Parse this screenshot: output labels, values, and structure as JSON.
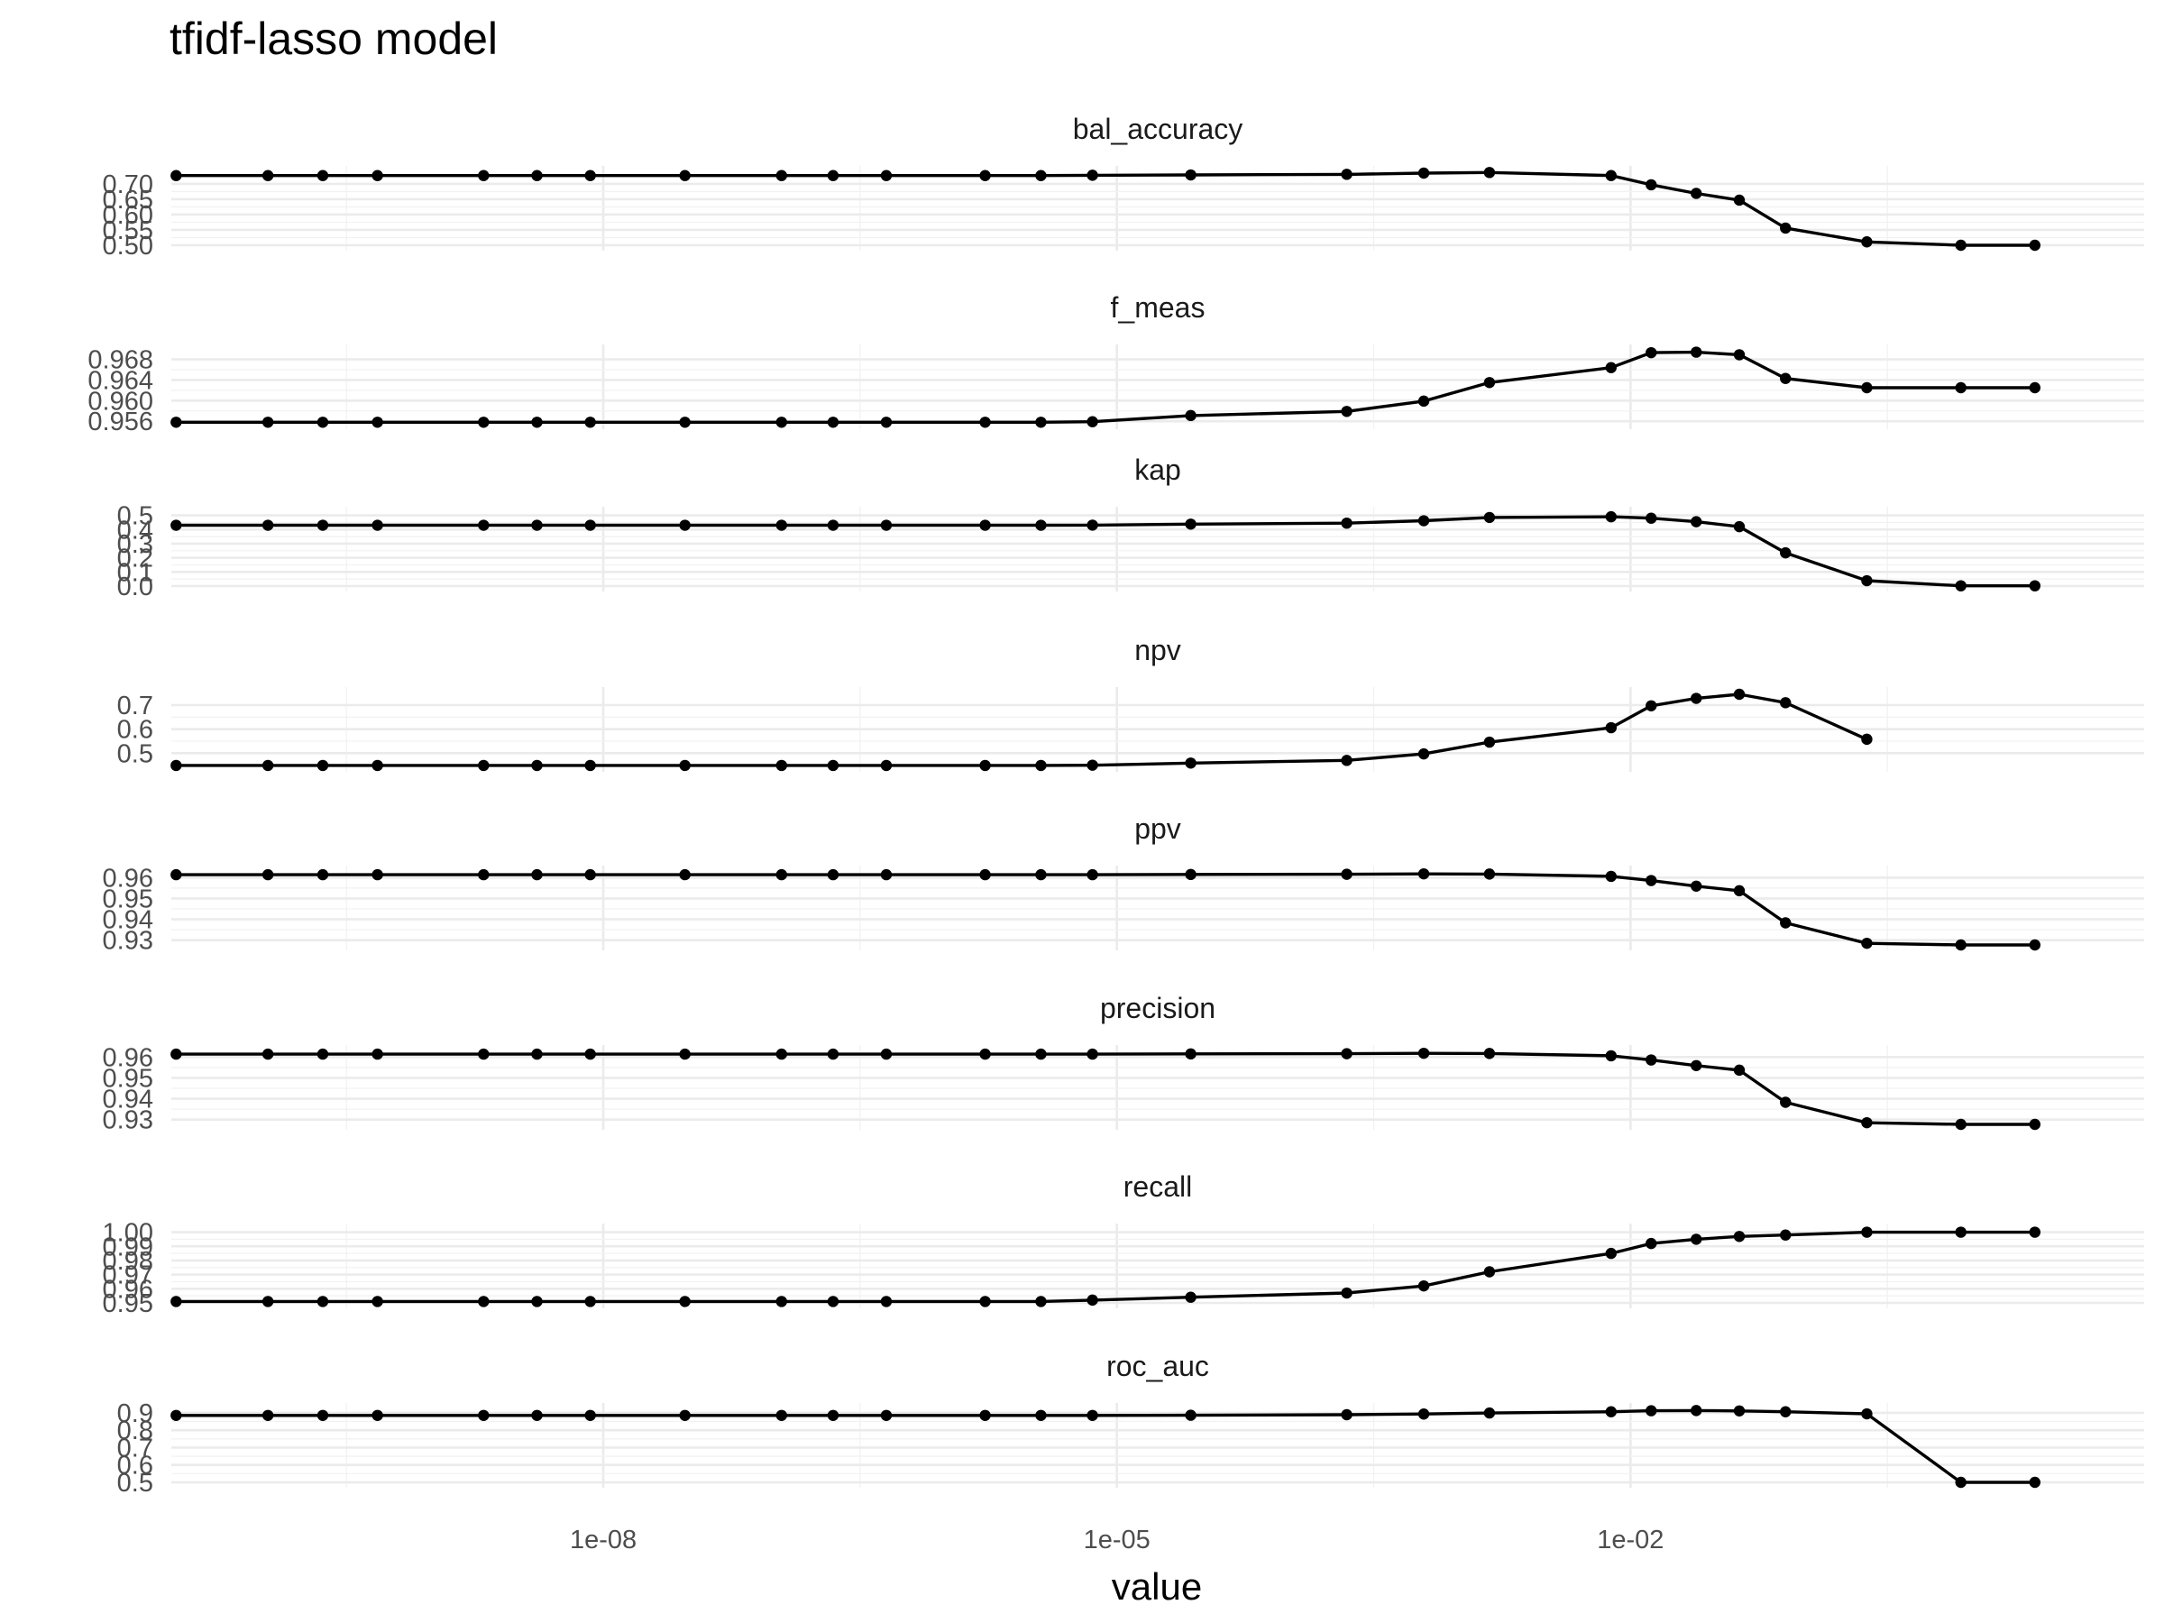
{
  "chart_data": {
    "type": "line",
    "title": "tfidf-lasso model",
    "xlabel": "value",
    "ylabel": "",
    "x_scale": "log10",
    "x_ticks": [
      1e-08,
      1e-05,
      0.01
    ],
    "x_tick_labels": [
      "1e-08",
      "1e-05",
      "1e-02"
    ],
    "xlim": [
      3e-11,
      10
    ],
    "grid": true,
    "x": [
      3.2e-11,
      1.1e-10,
      2.3e-10,
      4.8e-10,
      2e-09,
      4.1e-09,
      8.4e-09,
      3e-08,
      1.1e-07,
      2.2e-07,
      4.5e-07,
      1.7e-06,
      3.6e-06,
      7.2e-06,
      2.7e-05,
      0.00022,
      0.00062,
      0.0015,
      0.0077,
      0.0132,
      0.0242,
      0.0432,
      0.0804,
      0.24,
      0.85,
      2.3
    ],
    "panels": [
      {
        "name": "bal_accuracy",
        "y_ticks": [
          0.5,
          0.55,
          0.6,
          0.65,
          0.7
        ],
        "y_tick_labels": [
          "0.50",
          "0.55",
          "0.60",
          "0.65",
          "0.70"
        ],
        "ylim": [
          0.5,
          0.735
        ],
        "values": [
          0.727,
          0.727,
          0.727,
          0.727,
          0.727,
          0.727,
          0.727,
          0.727,
          0.727,
          0.727,
          0.727,
          0.727,
          0.727,
          0.728,
          0.729,
          0.731,
          0.735,
          0.737,
          0.727,
          0.697,
          0.669,
          0.647,
          0.556,
          0.511,
          0.5,
          0.5
        ]
      },
      {
        "name": "f_meas",
        "y_ticks": [
          0.956,
          0.96,
          0.964,
          0.968
        ],
        "y_tick_labels": [
          "0.956",
          "0.960",
          "0.964",
          "0.968"
        ],
        "ylim": [
          0.9555,
          0.9695
        ],
        "values": [
          0.9558,
          0.9558,
          0.9558,
          0.9558,
          0.9558,
          0.9558,
          0.9558,
          0.9558,
          0.9558,
          0.9558,
          0.9558,
          0.9558,
          0.9558,
          0.9559,
          0.9571,
          0.9579,
          0.9599,
          0.9635,
          0.9664,
          0.9693,
          0.9694,
          0.9689,
          0.9643,
          0.9625,
          0.9625,
          0.9625
        ]
      },
      {
        "name": "kap",
        "y_ticks": [
          0.0,
          0.1,
          0.2,
          0.3,
          0.4,
          0.5
        ],
        "y_tick_labels": [
          "0.0",
          "0.1",
          "0.2",
          "0.3",
          "0.4",
          "0.5"
        ],
        "ylim": [
          0.0,
          0.51
        ],
        "values": [
          0.43,
          0.43,
          0.43,
          0.43,
          0.43,
          0.43,
          0.43,
          0.43,
          0.43,
          0.43,
          0.43,
          0.43,
          0.43,
          0.431,
          0.438,
          0.445,
          0.462,
          0.485,
          0.49,
          0.48,
          0.455,
          0.42,
          0.235,
          0.038,
          0.002,
          0.002
        ]
      },
      {
        "name": "npv",
        "y_ticks": [
          0.5,
          0.6,
          0.7
        ],
        "y_tick_labels": [
          "0.5",
          "0.6",
          "0.7"
        ],
        "ylim": [
          0.445,
          0.745
        ],
        "values": [
          0.449,
          0.449,
          0.449,
          0.449,
          0.449,
          0.449,
          0.449,
          0.449,
          0.449,
          0.449,
          0.449,
          0.449,
          0.449,
          0.45,
          0.459,
          0.47,
          0.497,
          0.546,
          0.606,
          0.697,
          0.728,
          0.745,
          0.71,
          0.558,
          null,
          null
        ]
      },
      {
        "name": "ppv",
        "y_ticks": [
          0.93,
          0.94,
          0.95,
          0.96
        ],
        "y_tick_labels": [
          "0.93",
          "0.94",
          "0.95",
          "0.96"
        ],
        "ylim": [
          0.9277,
          0.9623
        ],
        "values": [
          0.9614,
          0.9614,
          0.9614,
          0.9614,
          0.9614,
          0.9614,
          0.9614,
          0.9614,
          0.9614,
          0.9614,
          0.9614,
          0.9614,
          0.9614,
          0.9614,
          0.9615,
          0.9616,
          0.9618,
          0.9617,
          0.9606,
          0.9586,
          0.9559,
          0.9537,
          0.9383,
          0.9285,
          0.9277,
          0.9277
        ]
      },
      {
        "name": "precision",
        "y_ticks": [
          0.93,
          0.94,
          0.95,
          0.96
        ],
        "y_tick_labels": [
          "0.93",
          "0.94",
          "0.95",
          "0.96"
        ],
        "ylim": [
          0.9277,
          0.9623
        ],
        "values": [
          0.9614,
          0.9614,
          0.9614,
          0.9614,
          0.9614,
          0.9614,
          0.9614,
          0.9614,
          0.9614,
          0.9614,
          0.9614,
          0.9614,
          0.9614,
          0.9614,
          0.9615,
          0.9616,
          0.9618,
          0.9617,
          0.9606,
          0.9586,
          0.9559,
          0.9537,
          0.9383,
          0.9285,
          0.9277,
          0.9277
        ]
      },
      {
        "name": "recall",
        "y_ticks": [
          0.95,
          0.96,
          0.97,
          0.98,
          0.99,
          1.0
        ],
        "y_tick_labels": [
          "0.95",
          "0.96",
          "0.97",
          "0.98",
          "0.99",
          "1.00"
        ],
        "ylim": [
          0.95,
          1.001
        ],
        "values": [
          0.951,
          0.951,
          0.951,
          0.951,
          0.951,
          0.951,
          0.951,
          0.951,
          0.951,
          0.951,
          0.951,
          0.951,
          0.951,
          0.952,
          0.954,
          0.957,
          0.962,
          0.972,
          0.985,
          0.992,
          0.995,
          0.997,
          0.998,
          1.0,
          1.0,
          1.0
        ]
      },
      {
        "name": "roc_auc",
        "y_ticks": [
          0.5,
          0.6,
          0.7,
          0.8,
          0.9
        ],
        "y_tick_labels": [
          "0.5",
          "0.6",
          "0.7",
          "0.8",
          "0.9"
        ],
        "ylim": [
          0.5,
          0.915
        ],
        "values": [
          0.885,
          0.885,
          0.885,
          0.885,
          0.885,
          0.885,
          0.885,
          0.885,
          0.885,
          0.885,
          0.885,
          0.885,
          0.885,
          0.885,
          0.886,
          0.889,
          0.893,
          0.899,
          0.906,
          0.912,
          0.913,
          0.911,
          0.906,
          0.894,
          0.5,
          0.5
        ]
      }
    ]
  }
}
